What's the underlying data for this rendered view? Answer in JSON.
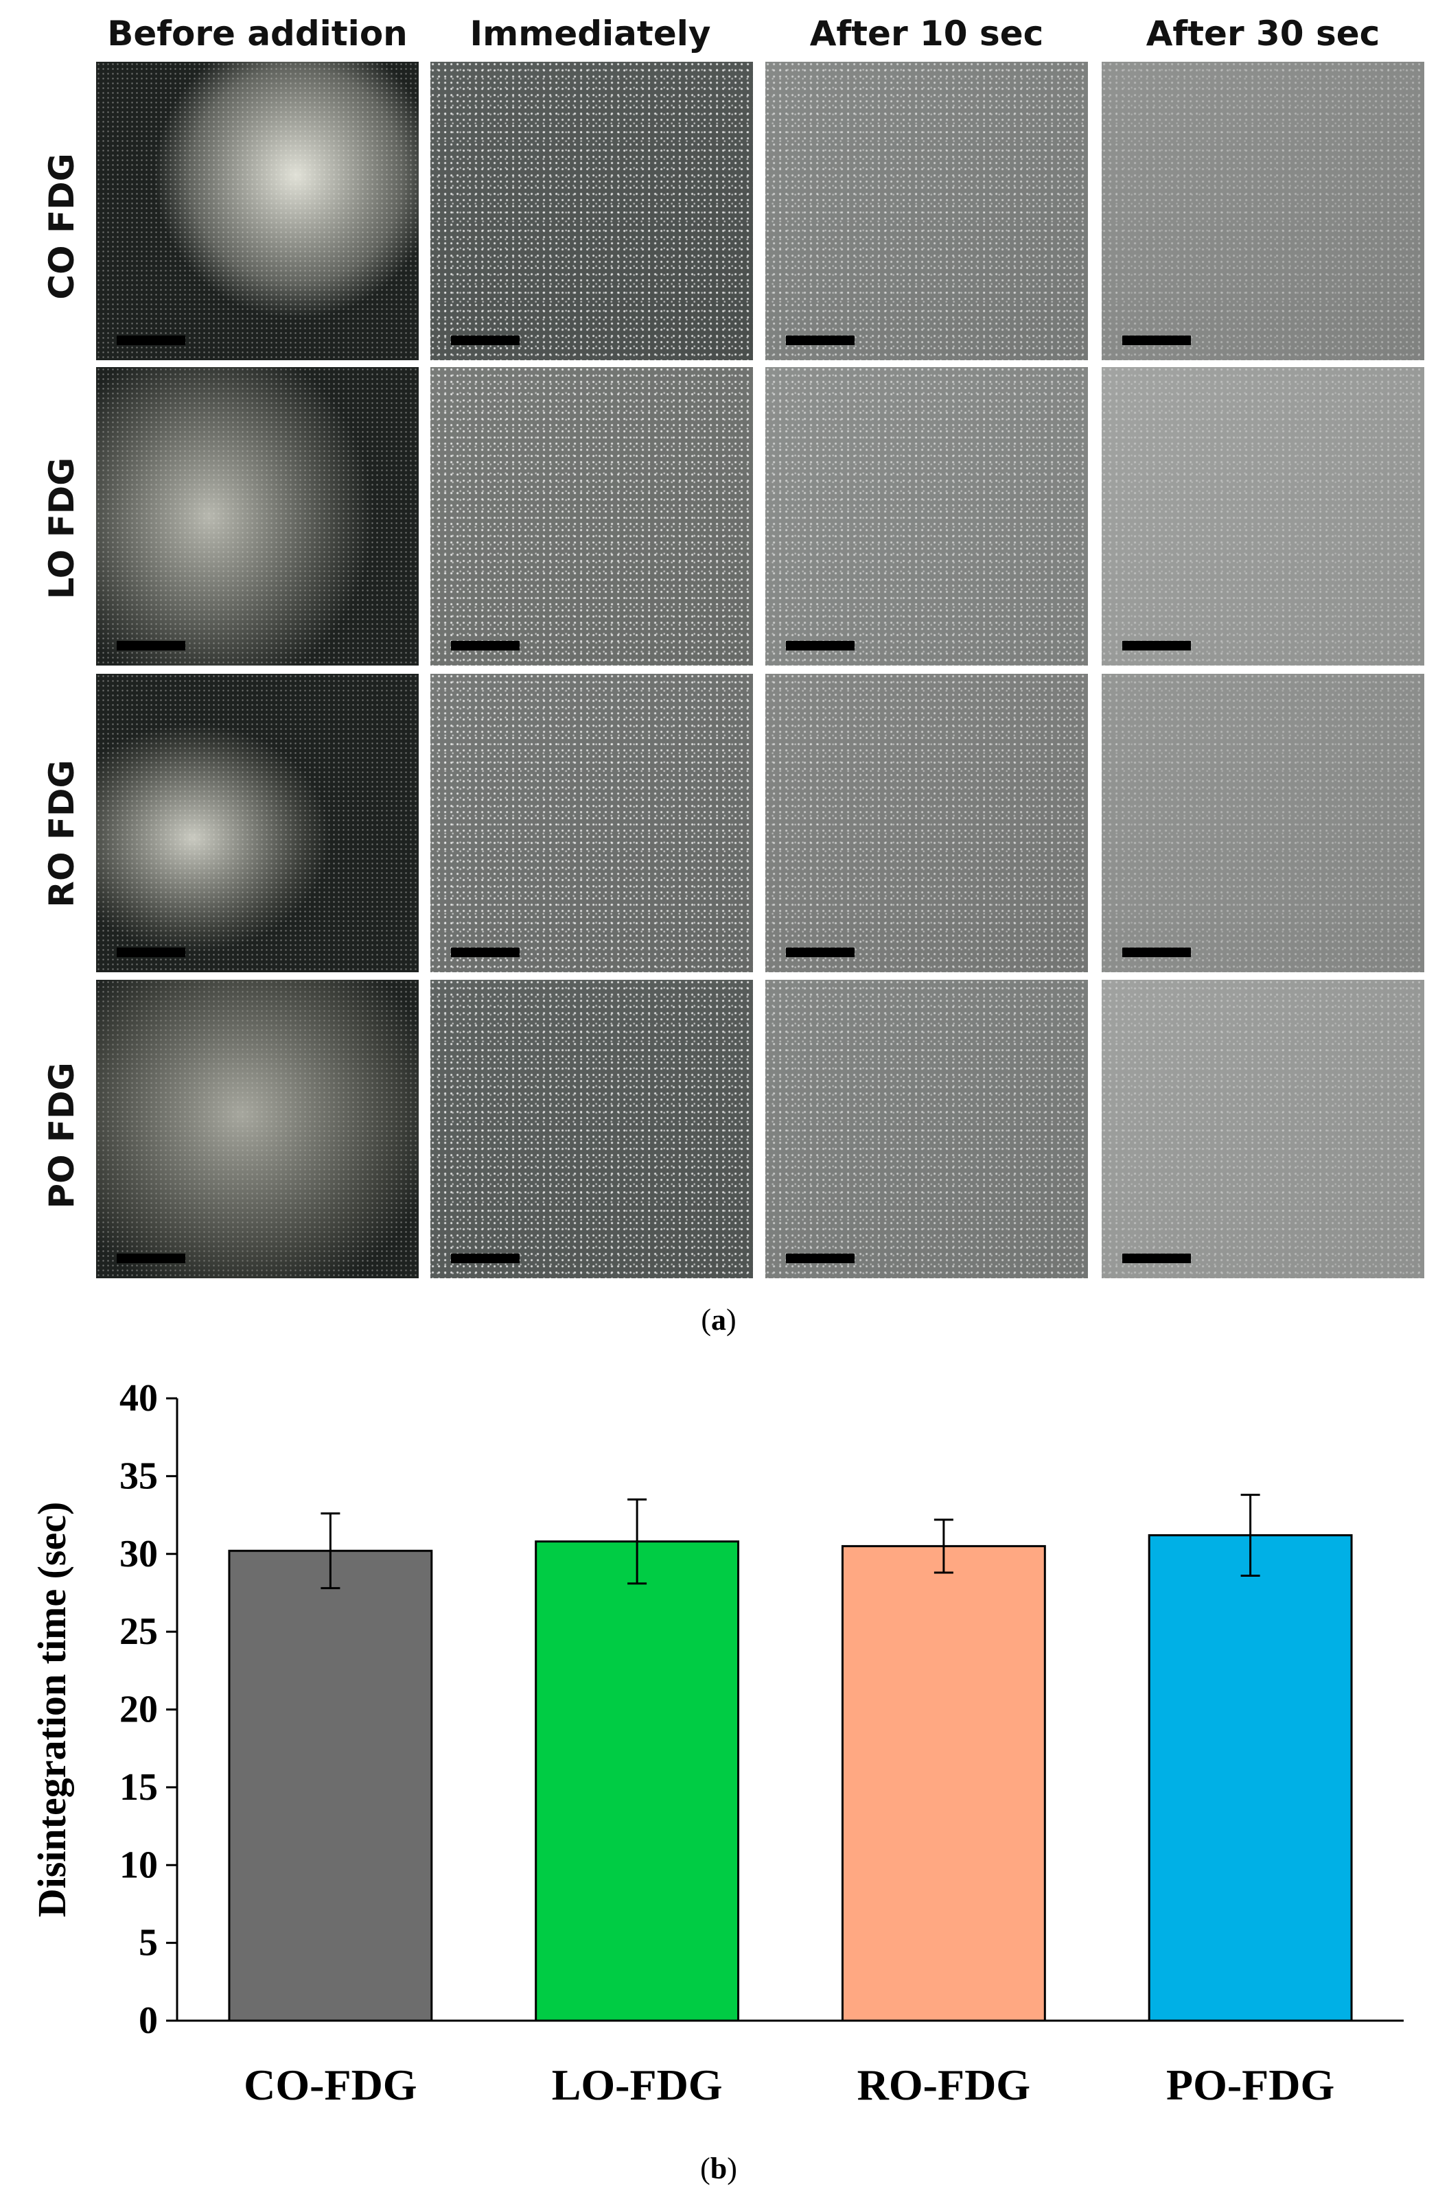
{
  "panel_a": {
    "column_headers": [
      "Before addition",
      "Immediately",
      "After 10 sec",
      "After 30 sec"
    ],
    "row_labels": [
      "CO FDG",
      "LO FDG",
      "RO FDG",
      "PO FDG"
    ],
    "caption_open": "(",
    "caption_letter": "a",
    "caption_close": ")"
  },
  "panel_b": {
    "caption_open": "(",
    "caption_letter": "b",
    "caption_close": ")"
  },
  "chart_data": {
    "type": "bar",
    "categories": [
      "CO-FDG",
      "LO-FDG",
      "RO-FDG",
      "PO-FDG"
    ],
    "values": [
      30.2,
      30.8,
      30.5,
      31.2
    ],
    "errors": [
      2.4,
      2.7,
      1.7,
      2.6
    ],
    "colors": [
      "#6d6d6d",
      "#00cc44",
      "#ffa882",
      "#00b0e6"
    ],
    "title": "",
    "xlabel": "",
    "ylabel": "Disintegration time (sec)",
    "ylim": [
      0,
      40
    ],
    "yticks": [
      0,
      5,
      10,
      15,
      20,
      25,
      30,
      35,
      40
    ],
    "grid": false,
    "legend": false
  }
}
